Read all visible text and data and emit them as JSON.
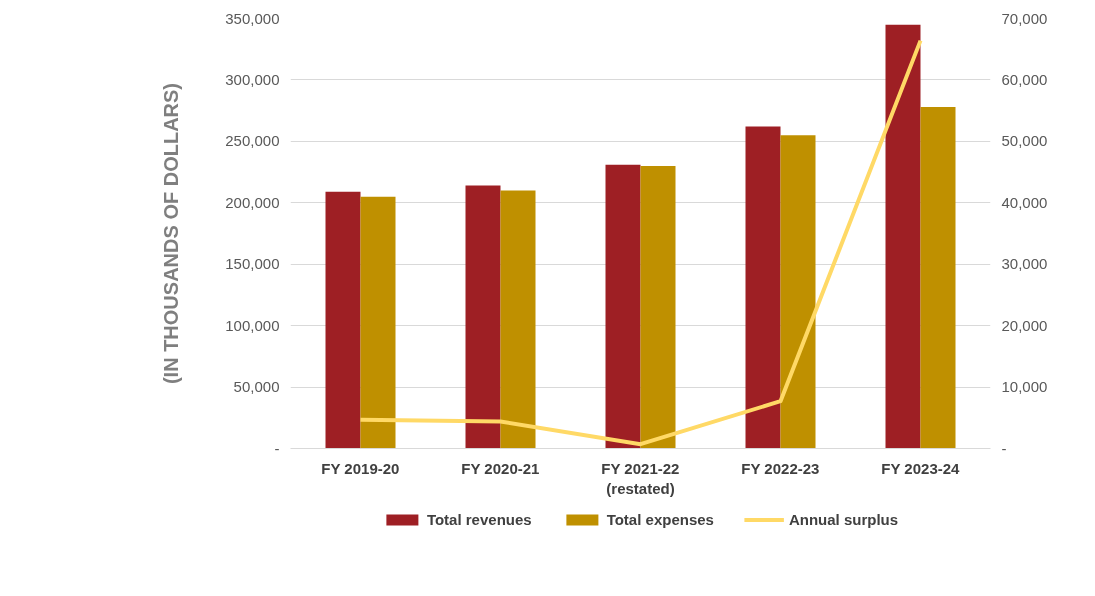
{
  "chart_data": {
    "type": "bar",
    "ylabel": "(IN THOUSANDS OF DOLLARS)",
    "categories": [
      "FY 2019-20",
      "FY 2020-21",
      "FY 2021-22\n(restated)",
      "FY 2022-23",
      "FY 2023-24"
    ],
    "series": [
      {
        "name": "Total revenues",
        "color": "#9e1f24",
        "values": [
          209000,
          214000,
          231000,
          262000,
          345000
        ]
      },
      {
        "name": "Total expenses",
        "color": "#bf9000",
        "values": [
          205000,
          210000,
          230000,
          255000,
          278000
        ]
      },
      {
        "name": "Annual surplus",
        "color": "#ffd966",
        "type": "line",
        "axis": "y2",
        "values": [
          4700,
          4400,
          700,
          7700,
          66400
        ]
      }
    ],
    "ylim": [
      0,
      350000
    ],
    "yticks": [
      {
        "value": 0,
        "label": "-"
      },
      {
        "value": 50000,
        "label": "50,000"
      },
      {
        "value": 100000,
        "label": "100,000"
      },
      {
        "value": 150000,
        "label": "150,000"
      },
      {
        "value": 200000,
        "label": "200,000"
      },
      {
        "value": 250000,
        "label": "250,000"
      },
      {
        "value": 300000,
        "label": "300,000"
      },
      {
        "value": 350000,
        "label": "350,000"
      }
    ],
    "y2lim": [
      0,
      70000
    ],
    "y2ticks": [
      {
        "value": 0,
        "label": "-"
      },
      {
        "value": 10000,
        "label": "10,000"
      },
      {
        "value": 20000,
        "label": "20,000"
      },
      {
        "value": 30000,
        "label": "30,000"
      },
      {
        "value": 40000,
        "label": "40,000"
      },
      {
        "value": 50000,
        "label": "50,000"
      },
      {
        "value": 60000,
        "label": "60,000"
      },
      {
        "value": 70000,
        "label": "70,000"
      }
    ],
    "grid": "y",
    "legend": "bottom",
    "marker": "none",
    "line_style": "solid"
  }
}
